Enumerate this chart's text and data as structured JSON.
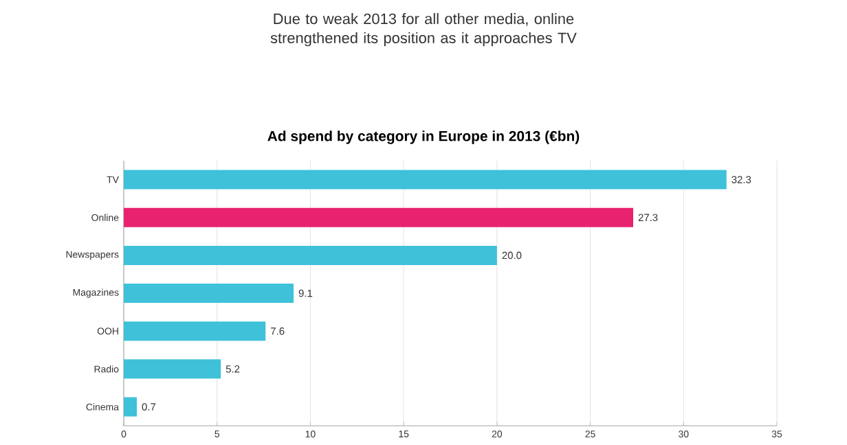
{
  "chart_data": {
    "type": "bar",
    "orientation": "horizontal",
    "title": "Due to weak 2013 for all other media, online strengthened its position as it approaches TV",
    "subtitle": "Ad spend by category in Europe in 2013 (€bn)",
    "categories": [
      "TV",
      "Online",
      "Newspapers",
      "Magazines",
      "OOH",
      "Radio",
      "Cinema"
    ],
    "values": [
      32.3,
      27.3,
      20.0,
      9.1,
      7.6,
      5.2,
      0.7
    ],
    "value_labels": [
      "32.3",
      "27.3",
      "20.0",
      "9.1",
      "7.6",
      "5.2",
      "0.7"
    ],
    "colors": [
      "#3ec1d9",
      "#e8226e",
      "#3ec1d9",
      "#3ec1d9",
      "#3ec1d9",
      "#3ec1d9",
      "#3ec1d9"
    ],
    "xlim": [
      0,
      35
    ],
    "xticks": [
      0,
      5,
      10,
      15,
      20,
      25,
      30,
      35
    ],
    "grid": "x"
  }
}
